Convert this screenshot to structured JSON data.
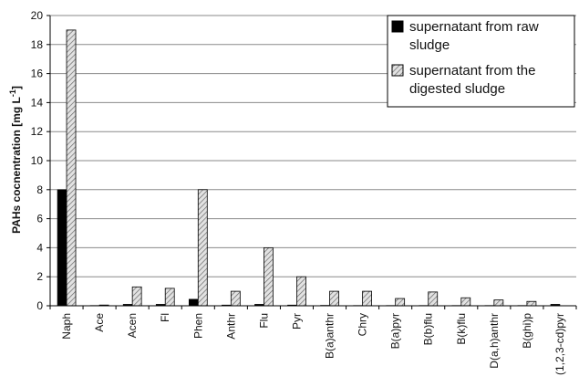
{
  "chart_data": {
    "type": "bar",
    "ylabel": "PAHs cocnentration [mg L",
    "ylabel_sup": "-1",
    "ylabel_end": "]",
    "ylim": [
      0,
      20
    ],
    "yticks": [
      0,
      2,
      4,
      6,
      8,
      10,
      12,
      14,
      16,
      18,
      20
    ],
    "grid": true,
    "legend_position": "top-right",
    "categories": [
      "Naph",
      "Ace",
      "Acen",
      "Fl",
      "Phen",
      "Anthr",
      "Flu",
      "Pyr",
      "B(a)anthr",
      "Chry",
      "B(a)pyr",
      "B(b)flu",
      "B(k)flu",
      "D(a,h)anthr",
      "B(ghi)p",
      "(1,2,3-cd)pyr"
    ],
    "series": [
      {
        "name_lines": [
          "supernatant from raw",
          "sludge"
        ],
        "color": "#000000",
        "values": [
          8,
          0.02,
          0.1,
          0.1,
          0.45,
          0.05,
          0.1,
          0.05,
          0.03,
          0.02,
          0.02,
          0.02,
          0.02,
          0.02,
          0.02,
          0.1
        ]
      },
      {
        "name_lines": [
          "supernatant from the",
          "digested sludge"
        ],
        "color": "#bdbdbd",
        "values": [
          19,
          0.05,
          1.3,
          1.2,
          8,
          1.0,
          4,
          2,
          1.0,
          1.0,
          0.5,
          0.95,
          0.55,
          0.4,
          0.3,
          0
        ]
      }
    ]
  }
}
